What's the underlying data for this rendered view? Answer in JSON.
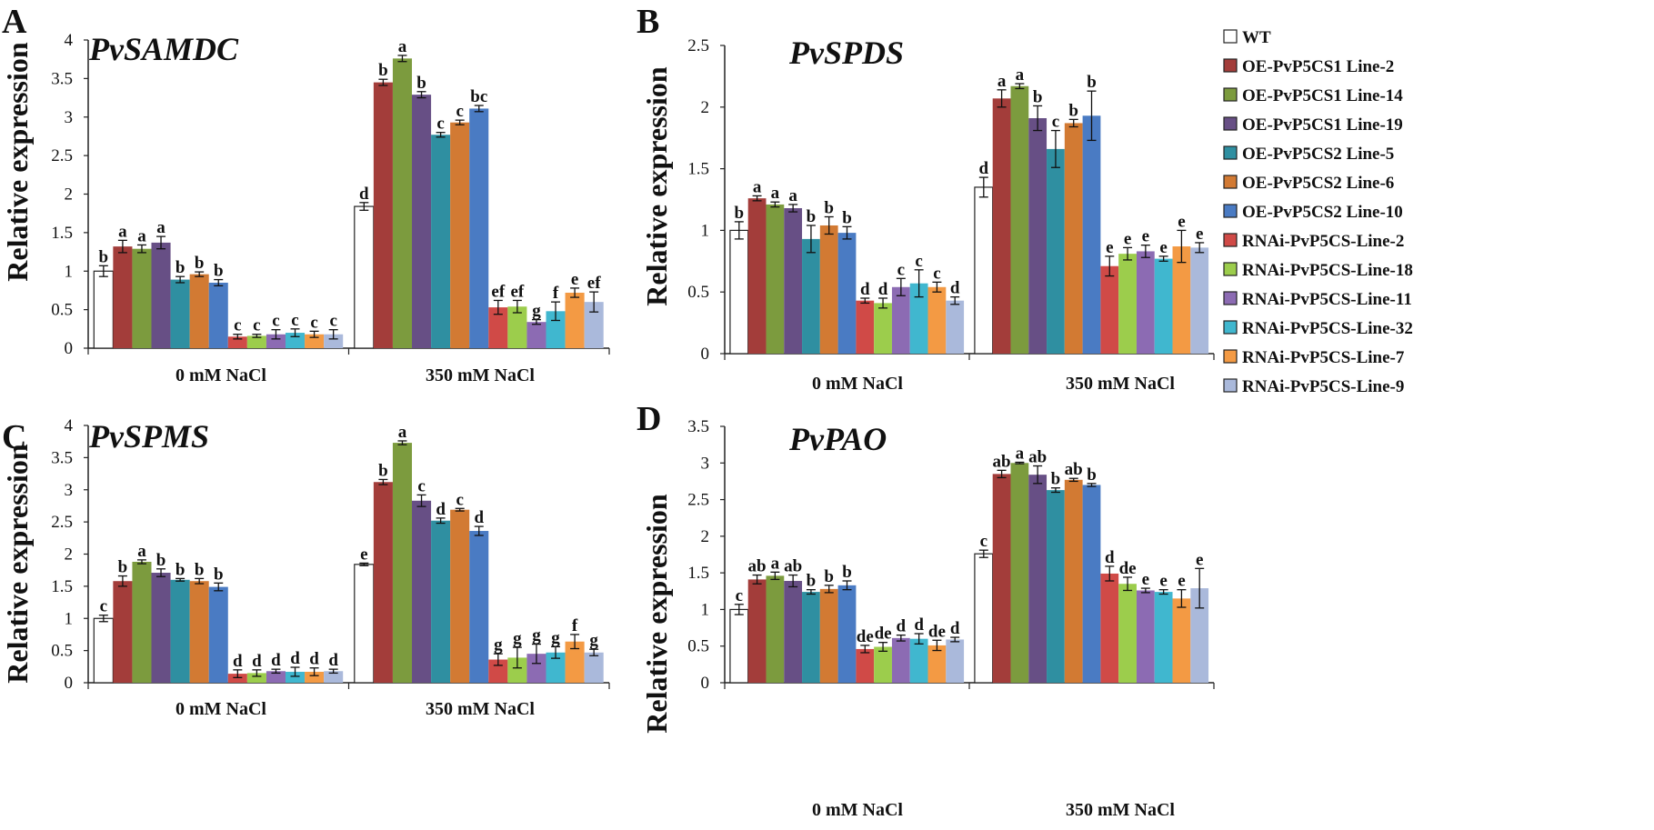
{
  "legend": [
    {
      "label": "WT",
      "color": "#ffffff"
    },
    {
      "label": "OE-PvP5CS1 Line-2",
      "color": "#a33d3a"
    },
    {
      "label": "OE-PvP5CS1 Line-14",
      "color": "#7c9b3e"
    },
    {
      "label": "OE-PvP5CS1 Line-19",
      "color": "#674f85"
    },
    {
      "label": "OE-PvP5CS2 Line-5",
      "color": "#2f8fa1"
    },
    {
      "label": "OE-PvP5CS2 Line-6",
      "color": "#d27a33"
    },
    {
      "label": "OE-PvP5CS2 Line-10",
      "color": "#4a7bc3"
    },
    {
      "label": "RNAi-PvP5CS-Line-2",
      "color": "#d04a47"
    },
    {
      "label": "RNAi-PvP5CS-Line-18",
      "color": "#9ccd4c"
    },
    {
      "label": "RNAi-PvP5CS-Line-11",
      "color": "#8c6bb3"
    },
    {
      "label": "RNAi-PvP5CS-Line-32",
      "color": "#40b7cf"
    },
    {
      "label": "RNAi-PvP5CS-Line-7",
      "color": "#f39a44"
    },
    {
      "label": "RNAi-PvP5CS-Line-9",
      "color": "#aab9db"
    }
  ],
  "chart_data": [
    {
      "panel": "A",
      "type": "bar",
      "title": "PvSAMDC",
      "ylabel": "Relative expression",
      "ylim": [
        0,
        4
      ],
      "yticks": [
        "0",
        "0.5",
        "1",
        "1.5",
        "2",
        "2.5",
        "3",
        "3.5",
        "4"
      ],
      "categories": [
        "0 mM NaCl",
        "350 mM NaCl"
      ],
      "groups": [
        {
          "values": [
            1.0,
            1.32,
            1.29,
            1.37,
            0.89,
            0.96,
            0.85,
            0.15,
            0.16,
            0.18,
            0.2,
            0.18,
            0.18
          ],
          "errors": [
            0.07,
            0.08,
            0.05,
            0.08,
            0.04,
            0.03,
            0.04,
            0.03,
            0.02,
            0.06,
            0.05,
            0.04,
            0.06
          ],
          "letters": [
            "b",
            "a",
            "a",
            "a",
            "b",
            "b",
            "b",
            "c",
            "c",
            "c",
            "c",
            "c",
            "c"
          ]
        },
        {
          "values": [
            1.84,
            3.45,
            3.76,
            3.29,
            2.77,
            2.93,
            3.11,
            0.53,
            0.54,
            0.34,
            0.48,
            0.72,
            0.6
          ],
          "errors": [
            0.05,
            0.04,
            0.04,
            0.04,
            0.03,
            0.03,
            0.04,
            0.09,
            0.08,
            0.03,
            0.12,
            0.06,
            0.13
          ],
          "letters": [
            "d",
            "b",
            "a",
            "b",
            "c",
            "c",
            "bc",
            "ef",
            "ef",
            "g",
            "f",
            "e",
            "ef"
          ]
        }
      ]
    },
    {
      "panel": "B",
      "type": "bar",
      "title": "PvSPDS",
      "ylabel": "Relative expression",
      "ylim": [
        0,
        2.5
      ],
      "yticks": [
        "0",
        "0.5",
        "1",
        "1.5",
        "2",
        "2.5"
      ],
      "categories": [
        "0 mM NaCl",
        "350 mM NaCl"
      ],
      "groups": [
        {
          "values": [
            1.0,
            1.26,
            1.21,
            1.18,
            0.93,
            1.04,
            0.98,
            0.43,
            0.41,
            0.54,
            0.57,
            0.54,
            0.43
          ],
          "errors": [
            0.07,
            0.02,
            0.02,
            0.03,
            0.11,
            0.07,
            0.05,
            0.02,
            0.04,
            0.07,
            0.11,
            0.04,
            0.03
          ],
          "letters": [
            "b",
            "a",
            "a",
            "a",
            "b",
            "b",
            "b",
            "d",
            "d",
            "c",
            "c",
            "c",
            "d"
          ]
        },
        {
          "values": [
            1.35,
            2.07,
            2.17,
            1.91,
            1.66,
            1.87,
            1.93,
            0.71,
            0.81,
            0.83,
            0.77,
            0.87,
            0.86
          ],
          "errors": [
            0.08,
            0.07,
            0.02,
            0.1,
            0.15,
            0.03,
            0.2,
            0.08,
            0.05,
            0.05,
            0.02,
            0.13,
            0.04
          ],
          "letters": [
            "d",
            "a",
            "a",
            "b",
            "c",
            "b",
            "b",
            "e",
            "e",
            "e",
            "e",
            "e",
            "e"
          ]
        }
      ]
    },
    {
      "panel": "C",
      "type": "bar",
      "title": "PvSPMS",
      "ylabel": "Relative expression",
      "ylim": [
        0,
        4
      ],
      "yticks": [
        "0",
        "0.5",
        "1",
        "1.5",
        "2",
        "2.5",
        "3",
        "3.5",
        "4"
      ],
      "categories": [
        "0 mM NaCl",
        "350 mM NaCl"
      ],
      "groups": [
        {
          "values": [
            1.0,
            1.58,
            1.88,
            1.71,
            1.6,
            1.58,
            1.49,
            0.14,
            0.15,
            0.18,
            0.17,
            0.17,
            0.18
          ],
          "errors": [
            0.05,
            0.08,
            0.03,
            0.06,
            0.02,
            0.04,
            0.06,
            0.06,
            0.05,
            0.03,
            0.07,
            0.06,
            0.03
          ],
          "letters": [
            "c",
            "b",
            "a",
            "b",
            "b",
            "b",
            "b",
            "d",
            "d",
            "d",
            "d",
            "d",
            "d"
          ]
        },
        {
          "values": [
            1.84,
            3.12,
            3.73,
            2.83,
            2.52,
            2.69,
            2.36,
            0.36,
            0.39,
            0.45,
            0.47,
            0.64,
            0.47
          ],
          "errors": [
            0.02,
            0.04,
            0.03,
            0.09,
            0.04,
            0.02,
            0.07,
            0.09,
            0.16,
            0.15,
            0.09,
            0.11,
            0.05
          ],
          "letters": [
            "e",
            "b",
            "a",
            "c",
            "d",
            "c",
            "d",
            "g",
            "g",
            "g",
            "g",
            "f",
            "g"
          ]
        }
      ]
    },
    {
      "panel": "D",
      "type": "bar",
      "title": "PvPAO",
      "ylabel": "Relative expression",
      "ylim": [
        0,
        3.5
      ],
      "yticks": [
        "0",
        "0.5",
        "1",
        "1.5",
        "2",
        "2.5",
        "3",
        "3.5"
      ],
      "categories": [
        "0 mM NaCl",
        "350 mM NaCl"
      ],
      "groups": [
        {
          "values": [
            1.0,
            1.41,
            1.46,
            1.39,
            1.24,
            1.28,
            1.33,
            0.46,
            0.49,
            0.61,
            0.6,
            0.51,
            0.59
          ],
          "errors": [
            0.07,
            0.06,
            0.05,
            0.08,
            0.03,
            0.05,
            0.06,
            0.05,
            0.06,
            0.04,
            0.07,
            0.07,
            0.03
          ],
          "letters": [
            "c",
            "ab",
            "a",
            "ab",
            "b",
            "b",
            "b",
            "de",
            "de",
            "d",
            "d",
            "de",
            "d"
          ]
        },
        {
          "values": [
            1.76,
            2.85,
            3.0,
            2.84,
            2.63,
            2.77,
            2.7,
            1.49,
            1.35,
            1.26,
            1.24,
            1.15,
            1.29
          ],
          "errors": [
            0.05,
            0.05,
            0.01,
            0.12,
            0.03,
            0.02,
            0.02,
            0.1,
            0.09,
            0.03,
            0.03,
            0.12,
            0.27
          ],
          "letters": [
            "c",
            "ab",
            "a",
            "ab",
            "b",
            "ab",
            "b",
            "d",
            "de",
            "e",
            "e",
            "e",
            "e"
          ]
        }
      ]
    }
  ]
}
